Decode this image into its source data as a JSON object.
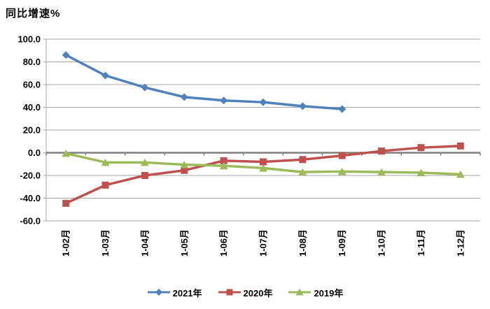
{
  "chart_data": {
    "type": "line",
    "title": "同比增速%",
    "categories": [
      "1-02月",
      "1-03月",
      "1-04月",
      "1-05月",
      "1-06月",
      "1-07月",
      "1-08月",
      "1-09月",
      "1-10月",
      "1-11月",
      "1-12月"
    ],
    "series": [
      {
        "name": "2021年",
        "color": "#4F81BD",
        "marker": "diamond",
        "values": [
          86,
          68,
          57.5,
          49,
          46,
          44.5,
          41,
          38.5,
          null,
          null,
          null
        ]
      },
      {
        "name": "2020年",
        "color": "#C0504D",
        "marker": "square",
        "values": [
          -44.5,
          -28.5,
          -20,
          -15.5,
          -7,
          -8,
          -6,
          -2.5,
          1.5,
          4.5,
          6
        ]
      },
      {
        "name": "2019年",
        "color": "#9BBB59",
        "marker": "triangle",
        "values": [
          -0.5,
          -8.5,
          -8.5,
          -10.5,
          -11.5,
          -13.5,
          -17,
          -16.5,
          -17,
          -17.5,
          -19
        ]
      }
    ],
    "ylim": [
      -60,
      100
    ],
    "ytick_step": 20,
    "ytick_labels": [
      "100.0",
      "80.0",
      "60.0",
      "40.0",
      "20.0",
      "0.0",
      "-20.0",
      "-40.0",
      "-60.0"
    ],
    "grid": true,
    "legend_position": "bottom",
    "colors": {
      "gridline": "#A6A6A6",
      "zero_axis": "#808080",
      "axis_line": "#A6A6A6",
      "text": "#000000",
      "background": "#FFFFFF"
    }
  }
}
